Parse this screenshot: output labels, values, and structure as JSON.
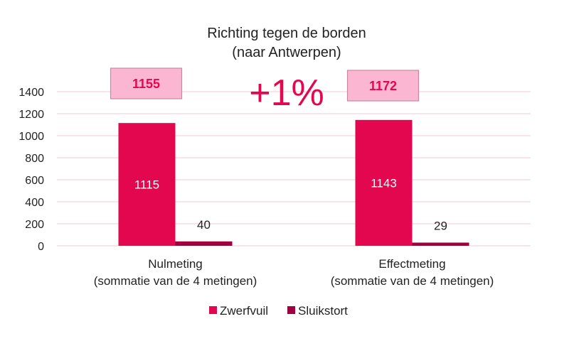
{
  "chart_data": {
    "type": "bar",
    "title": "Richting tegen de borden",
    "subtitle": "(naar Antwerpen)",
    "categories": [
      [
        "Nulmeting",
        "(sommatie van de 4 metingen)"
      ],
      [
        "Effectmeting",
        "(sommatie van de 4 metingen)"
      ]
    ],
    "series": [
      {
        "name": "Zwerfvuil",
        "values": [
          1115,
          1143
        ],
        "color": "#E3074F",
        "label_color": "#ffffff"
      },
      {
        "name": "Sluikstort",
        "values": [
          40,
          29
        ],
        "color": "#A0003E",
        "label_color": "#222222"
      }
    ],
    "totals": [
      "1155",
      "1172"
    ],
    "total_box_color": "#FBB7D2",
    "change_annotation": "+1%",
    "accent_color": "#E3074F",
    "ylim": [
      0,
      1400
    ],
    "yticks": [
      0,
      200,
      400,
      600,
      800,
      1000,
      1200,
      1400
    ],
    "grid": true,
    "gridline_color": "#F9DCE6",
    "legend_position": "bottom"
  }
}
